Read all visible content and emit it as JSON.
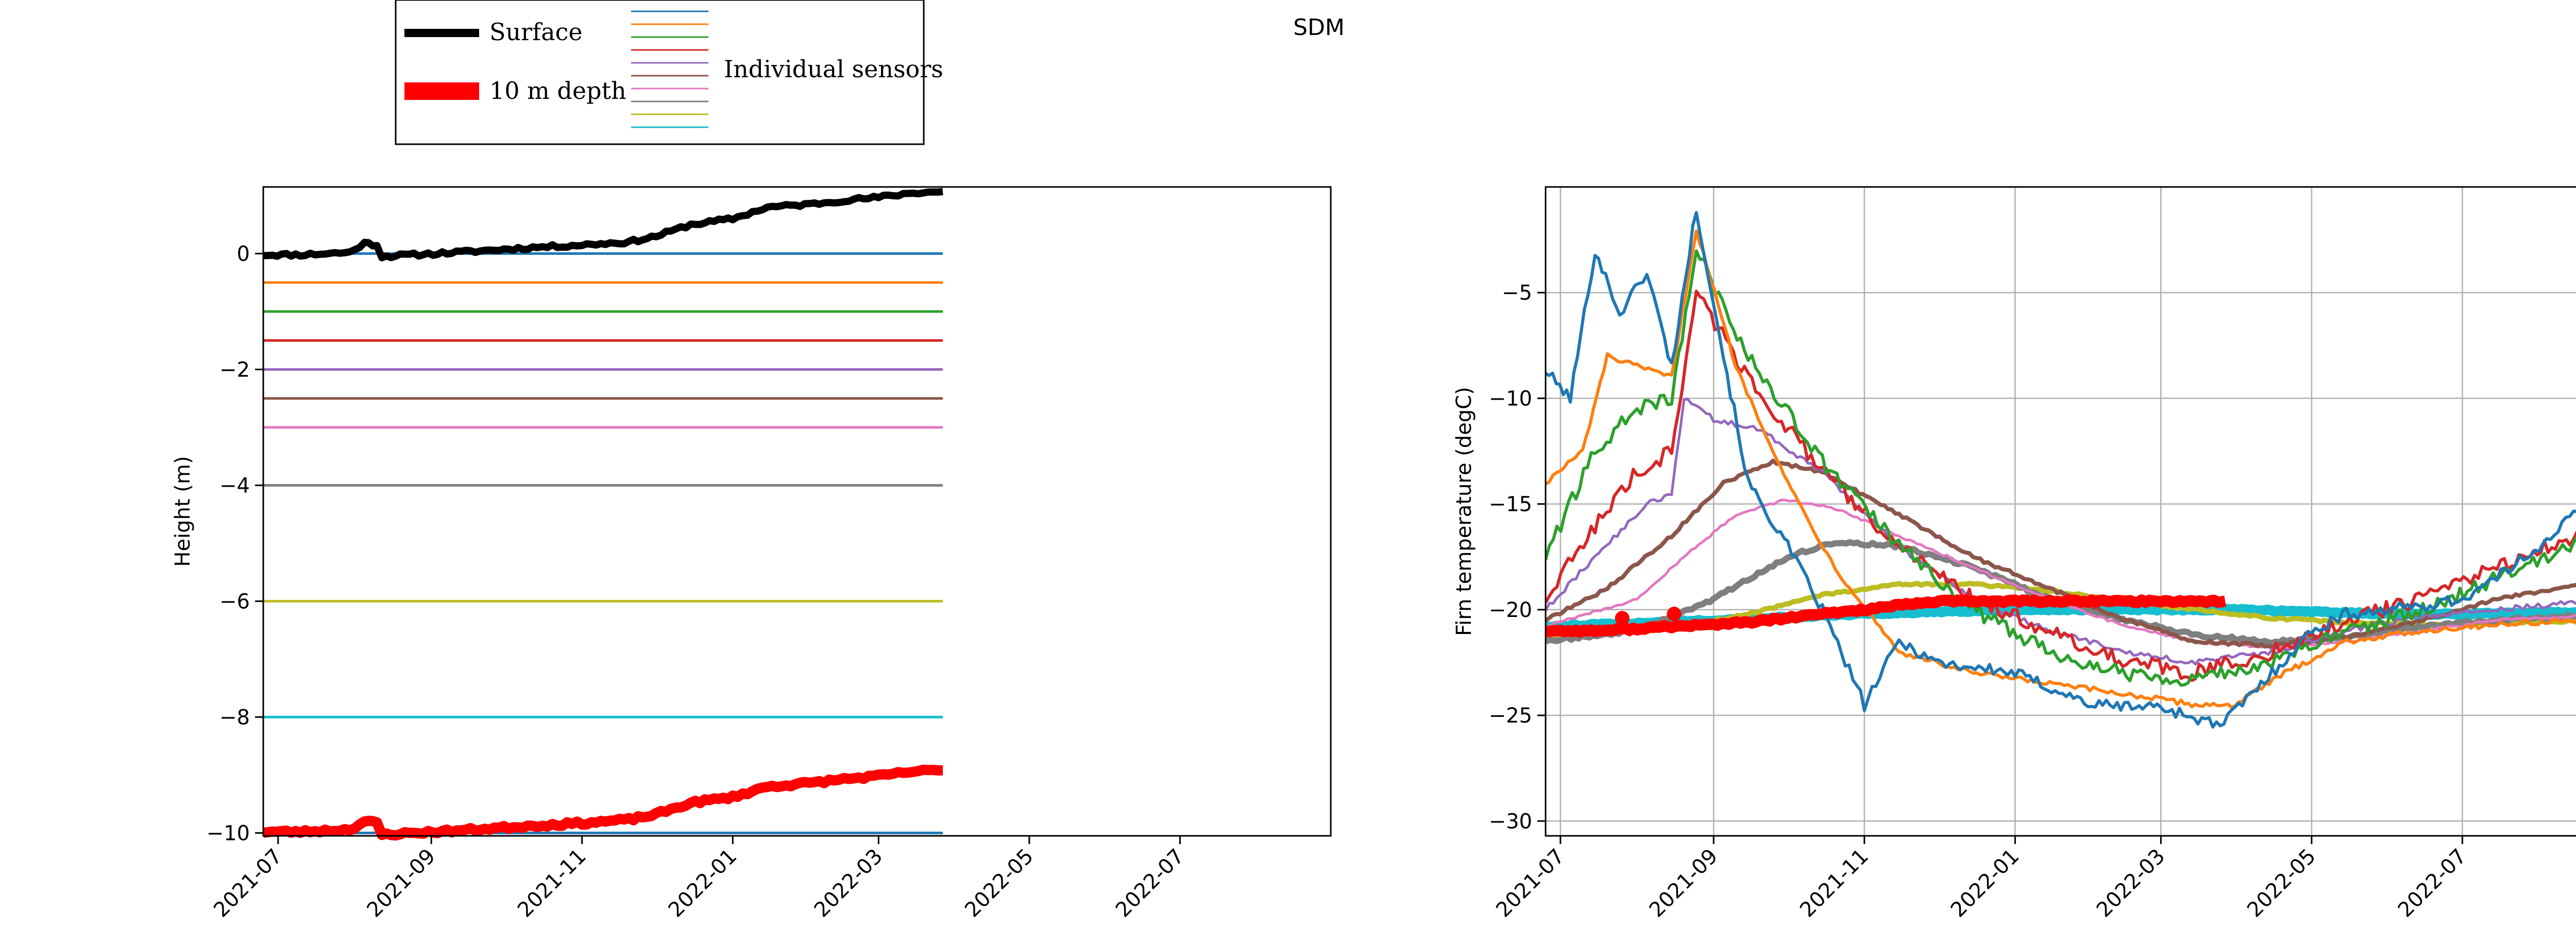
{
  "title": "SDM",
  "legend": {
    "surface": "Surface",
    "depth10": "10 m depth",
    "sensors": "Individual sensors",
    "placement": "top-left, above left panel"
  },
  "colors": {
    "surface": "#000000",
    "depth10": "#ff0000",
    "sensors": [
      "#1f77b4",
      "#ff7f0e",
      "#2ca02c",
      "#d62728",
      "#9467bd",
      "#8c564b",
      "#e377c2",
      "#7f7f7f",
      "#bcbd22",
      "#17becf"
    ]
  },
  "chart_data": [
    {
      "type": "line",
      "ylabel": "Height (m)",
      "xlabel": "",
      "grid": false,
      "xlim": [
        "2021-06-25",
        "2022-08-31"
      ],
      "ylim": [
        -10.05,
        1.15
      ],
      "xticks": [
        "2021-07",
        "2021-09",
        "2021-11",
        "2022-01",
        "2022-03",
        "2022-05",
        "2022-07"
      ],
      "yticks": [
        -10,
        -8,
        -6,
        -4,
        -2,
        0
      ],
      "surface": {
        "x": [
          "2021-06-25",
          "2021-07-10",
          "2021-07-20",
          "2021-07-30",
          "2021-08-05",
          "2021-08-10",
          "2021-08-12",
          "2021-08-25",
          "2021-09-15",
          "2021-10-10",
          "2021-11-01",
          "2021-11-20",
          "2021-12-01",
          "2021-12-15",
          "2022-01-01",
          "2022-01-15",
          "2022-02-01",
          "2022-02-15",
          "2022-03-01",
          "2022-03-15",
          "2022-03-27"
        ],
        "y": [
          -0.02,
          -0.02,
          0.0,
          0.02,
          0.18,
          0.15,
          -0.05,
          -0.02,
          0.03,
          0.1,
          0.15,
          0.2,
          0.3,
          0.5,
          0.6,
          0.8,
          0.85,
          0.92,
          0.97,
          1.05,
          1.07
        ]
      },
      "depth10": {
        "x": [
          "2021-06-25",
          "2021-07-10",
          "2021-07-20",
          "2021-07-30",
          "2021-08-05",
          "2021-08-10",
          "2021-08-12",
          "2021-08-25",
          "2021-09-15",
          "2021-10-10",
          "2021-11-01",
          "2021-11-20",
          "2021-12-01",
          "2021-12-15",
          "2022-01-01",
          "2022-01-15",
          "2022-02-01",
          "2022-02-15",
          "2022-03-01",
          "2022-03-15",
          "2022-03-27"
        ],
        "y": [
          -9.98,
          -9.98,
          -9.96,
          -9.94,
          -9.8,
          -9.83,
          -10.03,
          -10.0,
          -9.95,
          -9.88,
          -9.83,
          -9.77,
          -9.68,
          -9.48,
          -9.38,
          -9.2,
          -9.14,
          -9.07,
          -9.02,
          -8.94,
          -8.92
        ]
      },
      "sensors": {
        "x_start": "2021-06-25",
        "x_end": "2022-03-27",
        "depths": [
          0,
          -0.5,
          -1,
          -1.5,
          -2,
          -2.5,
          -3,
          -4,
          -6,
          -8,
          -10
        ]
      }
    },
    {
      "type": "line",
      "ylabel": "Firn temperature (degC)",
      "xlabel": "",
      "grid": true,
      "xlim": [
        "2021-06-25",
        "2022-08-31"
      ],
      "ylim": [
        -30.7,
        0.0
      ],
      "xticks": [
        "2021-07",
        "2021-09",
        "2021-11",
        "2022-01",
        "2022-03",
        "2022-05",
        "2022-07"
      ],
      "yticks": [
        -30,
        -25,
        -20,
        -15,
        -10,
        -5
      ],
      "series": [
        {
          "x": [
            "2021-06-25",
            "2021-07-05",
            "2021-07-15",
            "2021-07-25",
            "2021-08-05",
            "2021-08-15",
            "2021-08-25",
            "2021-09-05",
            "2021-09-15",
            "2021-10-01",
            "2021-10-15",
            "2021-11-01",
            "2021-11-15",
            "2021-12-01",
            "2022-01-01",
            "2022-02-01",
            "2022-03-01",
            "2022-03-25",
            "2022-04-15",
            "2022-05-01",
            "2022-05-15",
            "2022-06-01",
            "2022-06-15",
            "2022-07-01",
            "2022-07-15",
            "2022-08-01",
            "2022-08-15",
            "2022-08-31"
          ],
          "y": [
            -8.7,
            -10.0,
            -3.0,
            -6.0,
            -4.0,
            -8.5,
            -1.0,
            -8.0,
            -14.0,
            -17.0,
            -20.0,
            -24.5,
            -21.5,
            -22.5,
            -23.0,
            -24.5,
            -24.6,
            -25.5,
            -23.0,
            -21.0,
            -20.2,
            -20.0,
            -19.8,
            -19.5,
            -18.5,
            -17.0,
            -15.5,
            -15.0
          ]
        },
        {
          "x": [
            "2021-06-25",
            "2021-07-10",
            "2021-07-20",
            "2021-08-01",
            "2021-08-15",
            "2021-08-25",
            "2021-09-10",
            "2021-10-01",
            "2021-10-20",
            "2021-11-15",
            "2021-12-15",
            "2022-01-15",
            "2022-02-15",
            "2022-03-15",
            "2022-03-31",
            "2022-04-20",
            "2022-05-15",
            "2022-06-15",
            "2022-07-15",
            "2022-08-31"
          ],
          "y": [
            -14.0,
            -12.5,
            -8.0,
            -8.5,
            -9.0,
            -2.0,
            -8.5,
            -14.0,
            -18.0,
            -22.0,
            -23.0,
            -23.5,
            -24.0,
            -24.5,
            -24.5,
            -23.0,
            -21.5,
            -21.0,
            -20.7,
            -20.4
          ]
        },
        {
          "x": [
            "2021-06-25",
            "2021-07-15",
            "2021-08-01",
            "2021-08-15",
            "2021-08-25",
            "2021-09-15",
            "2021-10-15",
            "2021-11-15",
            "2021-12-15",
            "2022-01-15",
            "2022-02-15",
            "2022-03-15",
            "2022-04-15",
            "2022-05-15",
            "2022-06-15",
            "2022-07-15",
            "2022-08-15",
            "2022-08-31"
          ],
          "y": [
            -17.5,
            -12.5,
            -10.5,
            -10.0,
            -3.0,
            -8.0,
            -13.0,
            -17.0,
            -20.0,
            -22.0,
            -23.0,
            -23.3,
            -22.5,
            -21.0,
            -20.0,
            -18.5,
            -17.0,
            -15.5
          ]
        },
        {
          "x": [
            "2021-06-25",
            "2021-07-15",
            "2021-08-01",
            "2021-08-15",
            "2021-08-25",
            "2021-09-15",
            "2021-10-15",
            "2021-11-15",
            "2021-12-15",
            "2022-01-15",
            "2022-02-15",
            "2022-03-15",
            "2022-04-15",
            "2022-05-15",
            "2022-06-15",
            "2022-07-15",
            "2022-08-15",
            "2022-08-31"
          ],
          "y": [
            -19.5,
            -16.0,
            -13.5,
            -12.5,
            -5.0,
            -9.0,
            -13.5,
            -17.0,
            -19.5,
            -21.0,
            -22.5,
            -23.0,
            -22.0,
            -20.5,
            -19.5,
            -18.0,
            -16.5,
            -15.5
          ]
        },
        {
          "x": [
            "2021-06-25",
            "2021-07-15",
            "2021-08-05",
            "2021-08-15",
            "2021-08-20",
            "2021-09-01",
            "2021-09-20",
            "2021-10-15",
            "2021-11-15",
            "2021-12-15",
            "2022-01-15",
            "2022-02-15",
            "2022-03-15",
            "2022-04-15",
            "2022-05-15",
            "2022-06-15",
            "2022-07-15",
            "2022-08-31"
          ],
          "y": [
            -20.0,
            -17.5,
            -15.0,
            -14.5,
            -10.0,
            -11.0,
            -11.5,
            -13.5,
            -17.0,
            -19.5,
            -21.0,
            -22.0,
            -22.5,
            -22.0,
            -21.0,
            -20.3,
            -20.0,
            -19.5
          ]
        },
        {
          "x": [
            "2021-06-25",
            "2021-07-20",
            "2021-08-15",
            "2021-09-05",
            "2021-09-25",
            "2021-10-15",
            "2021-11-15",
            "2021-12-15",
            "2022-01-15",
            "2022-02-15",
            "2022-03-15",
            "2022-04-15",
            "2022-05-15",
            "2022-06-15",
            "2022-07-15",
            "2022-08-31"
          ],
          "y": [
            -20.5,
            -19.0,
            -16.5,
            -14.0,
            -13.0,
            -13.5,
            -15.5,
            -17.5,
            -19.0,
            -20.5,
            -21.5,
            -21.7,
            -21.3,
            -20.5,
            -19.5,
            -18.5
          ]
        },
        {
          "x": [
            "2021-06-25",
            "2021-08-01",
            "2021-08-20",
            "2021-09-10",
            "2021-09-30",
            "2021-10-20",
            "2021-11-15",
            "2021-12-15",
            "2022-01-15",
            "2022-02-15",
            "2022-03-15",
            "2022-04-15",
            "2022-05-15",
            "2022-06-15",
            "2022-07-15",
            "2022-08-31"
          ],
          "y": [
            -20.8,
            -19.5,
            -17.5,
            -15.5,
            -14.8,
            -15.2,
            -16.5,
            -18.0,
            -19.5,
            -20.8,
            -21.5,
            -21.8,
            -21.5,
            -21.0,
            -20.5,
            -20.2
          ]
        },
        {
          "x": [
            "2021-06-25",
            "2021-08-01",
            "2021-09-01",
            "2021-10-01",
            "2021-10-20",
            "2021-11-15",
            "2021-12-15",
            "2022-01-15",
            "2022-02-15",
            "2022-03-15",
            "2022-04-15",
            "2022-05-15",
            "2022-06-15",
            "2022-07-15",
            "2022-08-31"
          ],
          "y": [
            -21.5,
            -21.0,
            -19.5,
            -17.5,
            -16.8,
            -17.0,
            -18.0,
            -19.5,
            -20.5,
            -21.2,
            -21.5,
            -21.3,
            -20.8,
            -20.5,
            -20.2
          ]
        },
        {
          "x": [
            "2021-06-25",
            "2021-08-15",
            "2021-09-15",
            "2021-10-15",
            "2021-11-15",
            "2021-12-15",
            "2022-01-15",
            "2022-02-15",
            "2022-03-15",
            "2022-04-15",
            "2022-05-15",
            "2022-06-15",
            "2022-07-15",
            "2022-08-31"
          ],
          "y": [
            -21.3,
            -20.9,
            -20.2,
            -19.3,
            -18.8,
            -18.8,
            -19.1,
            -19.6,
            -20.0,
            -20.4,
            -20.6,
            -20.7,
            -20.6,
            -20.5
          ]
        },
        {
          "x": [
            "2021-06-25",
            "2021-09-01",
            "2021-11-01",
            "2022-01-01",
            "2022-03-01",
            "2022-04-01",
            "2022-05-01",
            "2022-06-01",
            "2022-07-01",
            "2022-08-31"
          ],
          "y": [
            -20.8,
            -20.5,
            -20.2,
            -20.0,
            -20.0,
            -20.0,
            -20.1,
            -20.2,
            -20.2,
            -20.1
          ]
        }
      ],
      "depth10": {
        "x": [
          "2021-06-25",
          "2021-07-15",
          "2021-08-01",
          "2021-08-15",
          "2021-09-01",
          "2021-09-15",
          "2021-10-01",
          "2021-10-15",
          "2021-11-01",
          "2021-11-15",
          "2021-12-01",
          "2021-12-15",
          "2022-01-01",
          "2022-01-15",
          "2022-02-01",
          "2022-02-15",
          "2022-03-01",
          "2022-03-15",
          "2022-03-27"
        ],
        "y": [
          -21.0,
          -21.0,
          -20.9,
          -20.8,
          -20.7,
          -20.6,
          -20.4,
          -20.2,
          -20.0,
          -19.8,
          -19.6,
          -19.6,
          -19.6,
          -19.6,
          -19.6,
          -19.6,
          -19.6,
          -19.6,
          -19.6
        ]
      },
      "markers": [
        {
          "x": "2021-07-26",
          "y": -20.4
        },
        {
          "x": "2021-08-16",
          "y": -20.2
        }
      ]
    }
  ]
}
